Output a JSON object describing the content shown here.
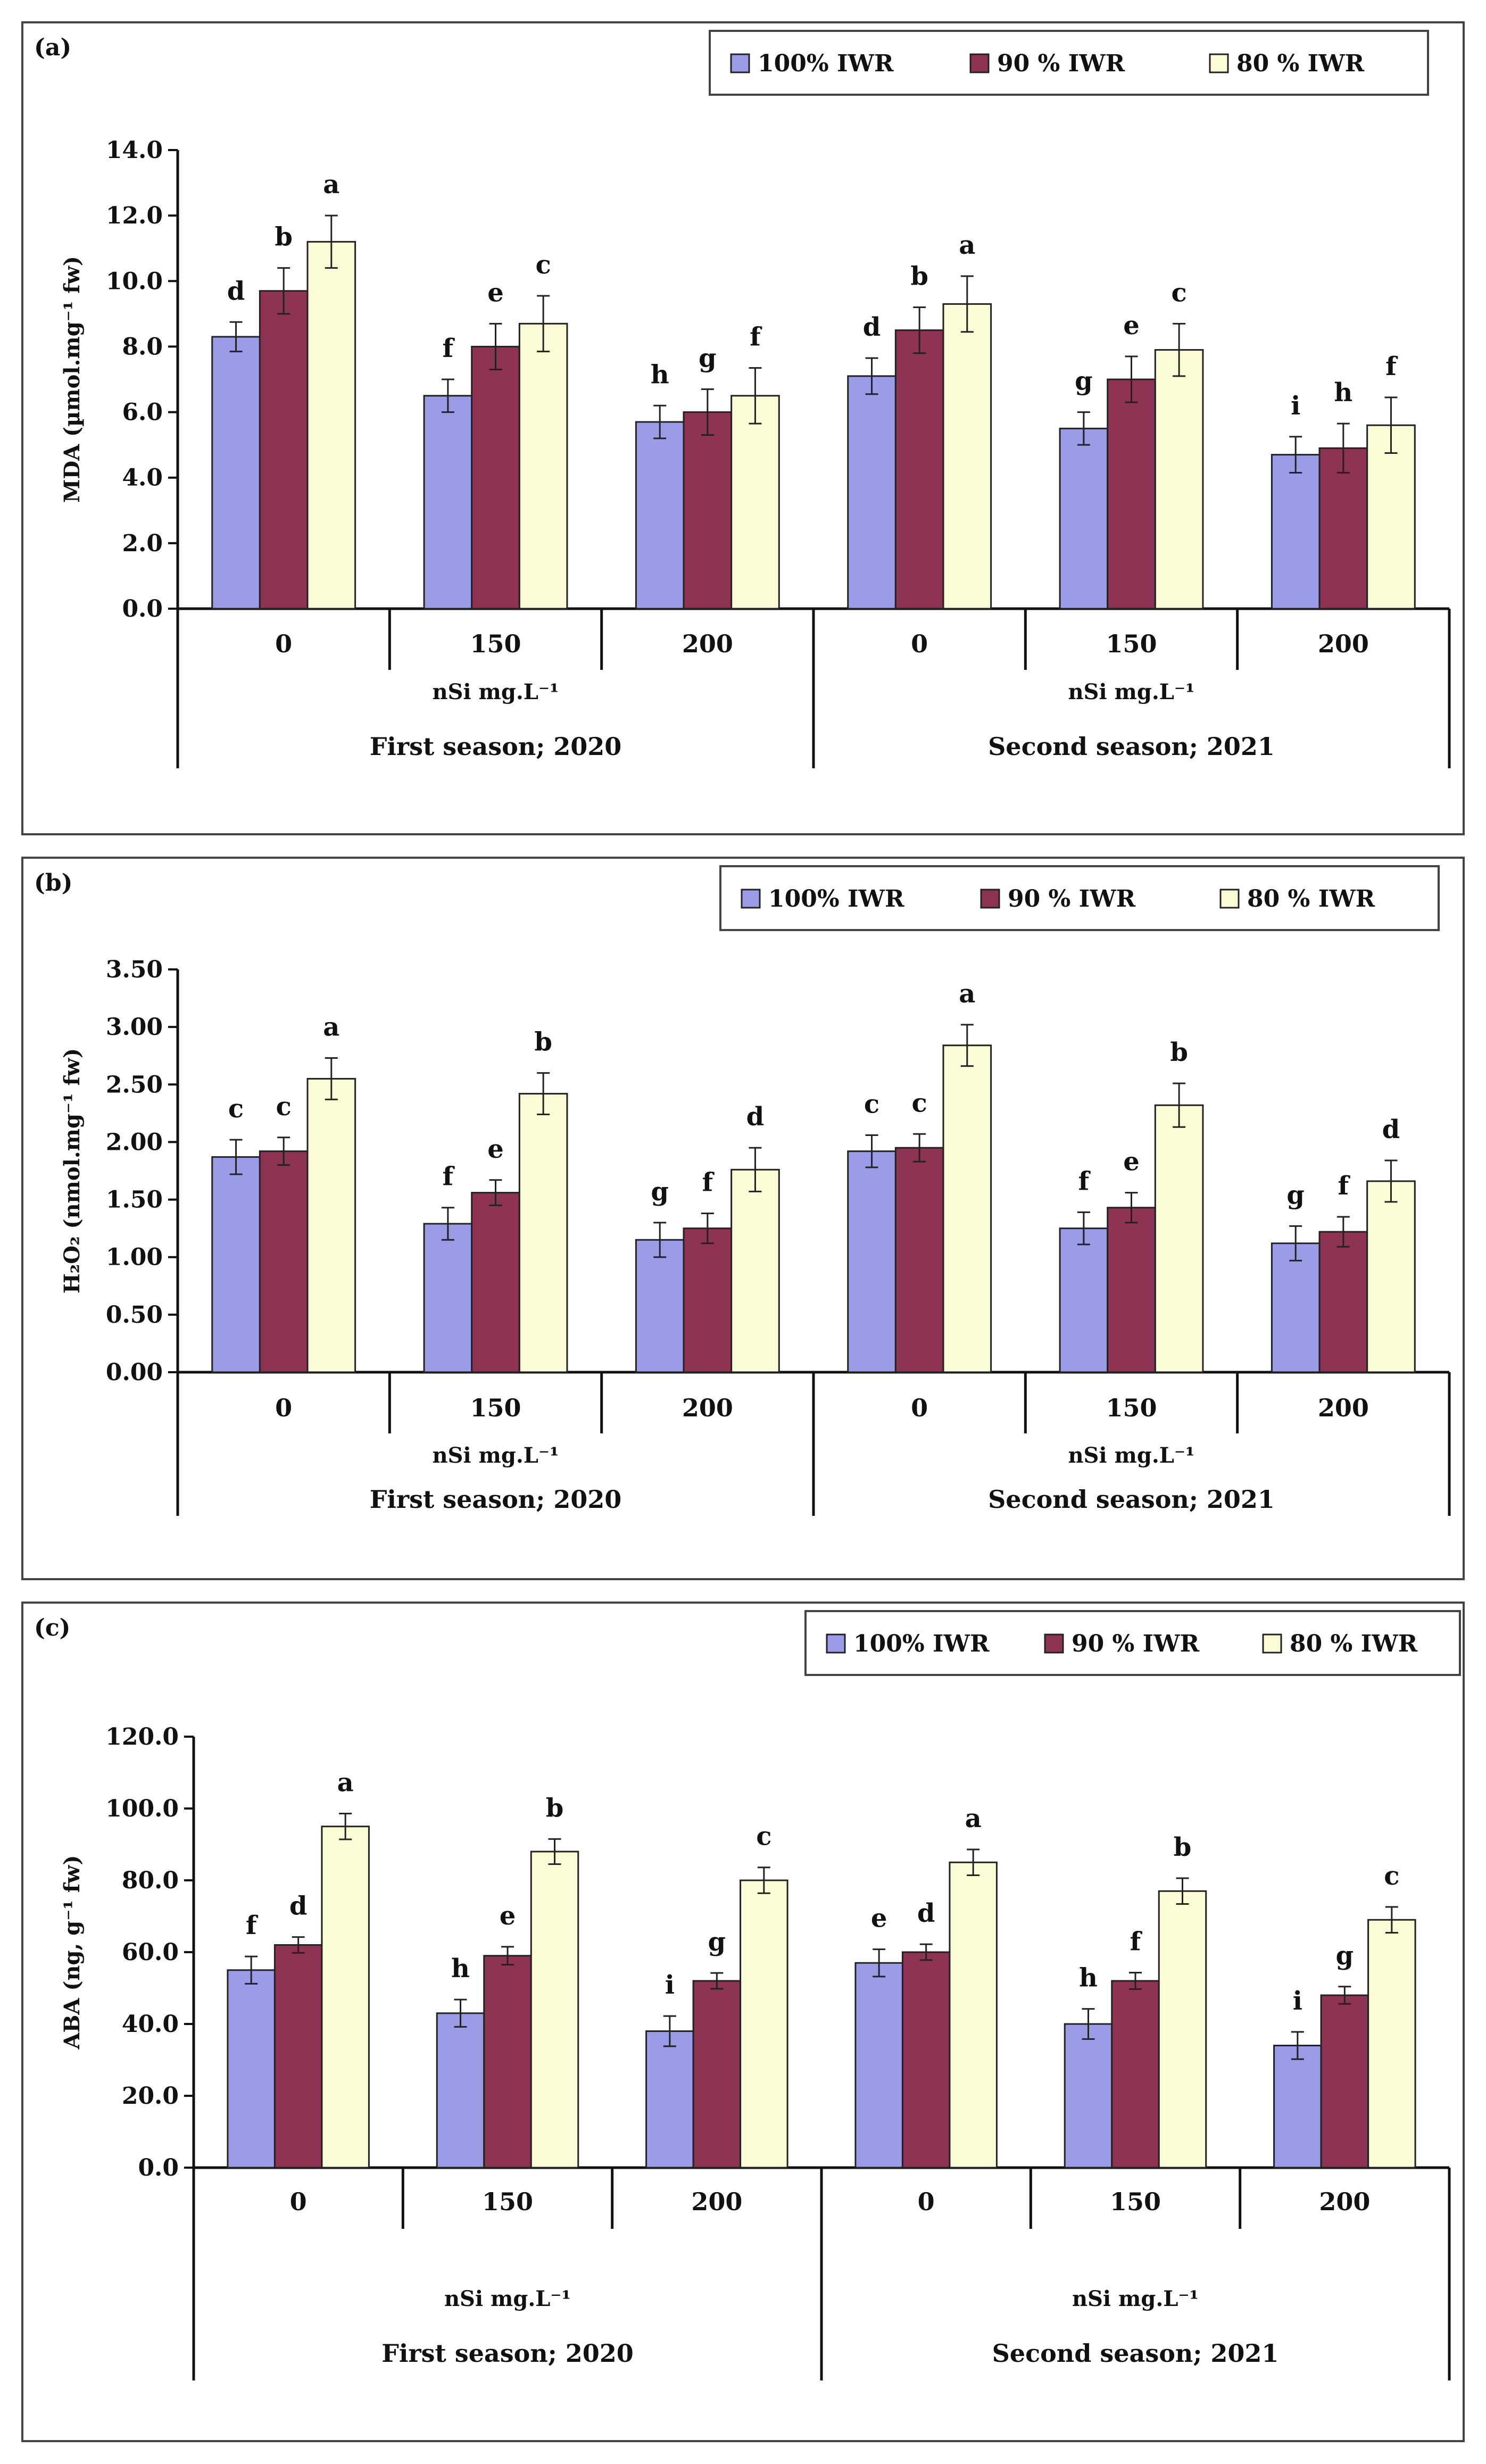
{
  "colors": {
    "s100": "#9b9ce8",
    "s90": "#8e3353",
    "s80": "#fbfbd6"
  },
  "legend_labels": [
    "100% IWR",
    "90 %  IWR",
    "80 % IWR"
  ],
  "x_group_labels": [
    "0",
    "150",
    "200"
  ],
  "unit_label": "nSi mg.L⁻¹",
  "season_labels": [
    "First season; 2020",
    "Second season; 2021"
  ],
  "chart_data": [
    {
      "type": "bar",
      "panel_label": "(a)",
      "ylabel": "MDA (µmol.mg⁻¹ fw)",
      "ylim": [
        0,
        14
      ],
      "yticks": [
        "0.0",
        "2.0",
        "4.0",
        "6.0",
        "8.0",
        "10.0",
        "12.0",
        "14.0"
      ],
      "categories": [
        "0",
        "150",
        "200",
        "0",
        "150",
        "200"
      ],
      "series": [
        {
          "name": "100% IWR",
          "values": [
            8.3,
            6.5,
            5.7,
            7.1,
            5.5,
            4.7
          ],
          "errors": [
            0.45,
            0.5,
            0.5,
            0.55,
            0.5,
            0.55
          ],
          "letters": [
            "d",
            "f",
            "h",
            "d",
            "g",
            "i"
          ]
        },
        {
          "name": "90 %  IWR",
          "values": [
            9.7,
            8.0,
            6.0,
            8.5,
            7.0,
            4.9
          ],
          "errors": [
            0.7,
            0.7,
            0.7,
            0.7,
            0.7,
            0.75
          ],
          "letters": [
            "b",
            "e",
            "g",
            "b",
            "e",
            "h"
          ]
        },
        {
          "name": "80 % IWR",
          "values": [
            11.2,
            8.7,
            6.5,
            9.3,
            7.9,
            5.6
          ],
          "errors": [
            0.8,
            0.85,
            0.85,
            0.85,
            0.8,
            0.85
          ],
          "letters": [
            "a",
            "c",
            "f",
            "a",
            "c",
            "f"
          ]
        }
      ]
    },
    {
      "type": "bar",
      "panel_label": "(b)",
      "ylabel": "H₂O₂ (nmol.mg⁻¹ fw)",
      "ylim": [
        0,
        3.5
      ],
      "yticks": [
        "0.00",
        "0.50",
        "1.00",
        "1.50",
        "2.00",
        "2.50",
        "3.00",
        "3.50"
      ],
      "categories": [
        "0",
        "150",
        "200",
        "0",
        "150",
        "200"
      ],
      "series": [
        {
          "name": "100% IWR",
          "values": [
            1.87,
            1.29,
            1.15,
            1.92,
            1.25,
            1.12
          ],
          "errors": [
            0.15,
            0.14,
            0.15,
            0.14,
            0.14,
            0.15
          ],
          "letters": [
            "c",
            "f",
            "g",
            "c",
            "f",
            "g"
          ]
        },
        {
          "name": "90 %  IWR",
          "values": [
            1.92,
            1.56,
            1.25,
            1.95,
            1.43,
            1.22
          ],
          "errors": [
            0.12,
            0.11,
            0.13,
            0.12,
            0.13,
            0.13
          ],
          "letters": [
            "c",
            "e",
            "f",
            "c",
            "e",
            "f"
          ]
        },
        {
          "name": "80 % IWR",
          "values": [
            2.55,
            2.42,
            1.76,
            2.84,
            2.32,
            1.66
          ],
          "errors": [
            0.18,
            0.18,
            0.19,
            0.18,
            0.19,
            0.18
          ],
          "letters": [
            "a",
            "b",
            "d",
            "a",
            "b",
            "d"
          ]
        }
      ]
    },
    {
      "type": "bar",
      "panel_label": "(c)",
      "ylabel": "ABA (ng, g⁻¹ fw)",
      "ylim": [
        0,
        120
      ],
      "yticks": [
        "0.0",
        "20.0",
        "40.0",
        "60.0",
        "80.0",
        "100.0",
        "120.0"
      ],
      "categories": [
        "0",
        "150",
        "200",
        "0",
        "150",
        "200"
      ],
      "series": [
        {
          "name": "100% IWR",
          "values": [
            55,
            43,
            38,
            57,
            40,
            34
          ],
          "errors": [
            3.8,
            3.8,
            4.2,
            3.8,
            4.2,
            3.8
          ],
          "letters": [
            "f",
            "h",
            "i",
            "e",
            "h",
            "i"
          ]
        },
        {
          "name": "90 %  IWR",
          "values": [
            62,
            59,
            52,
            60,
            52,
            48
          ],
          "errors": [
            2.2,
            2.5,
            2.2,
            2.2,
            2.3,
            2.4
          ],
          "letters": [
            "d",
            "e",
            "g",
            "d",
            "f",
            "g"
          ]
        },
        {
          "name": "80 % IWR",
          "values": [
            95,
            88,
            80,
            85,
            77,
            69
          ],
          "errors": [
            3.6,
            3.5,
            3.6,
            3.6,
            3.6,
            3.6
          ],
          "letters": [
            "a",
            "b",
            "c",
            "a",
            "b",
            "c"
          ]
        }
      ]
    }
  ]
}
